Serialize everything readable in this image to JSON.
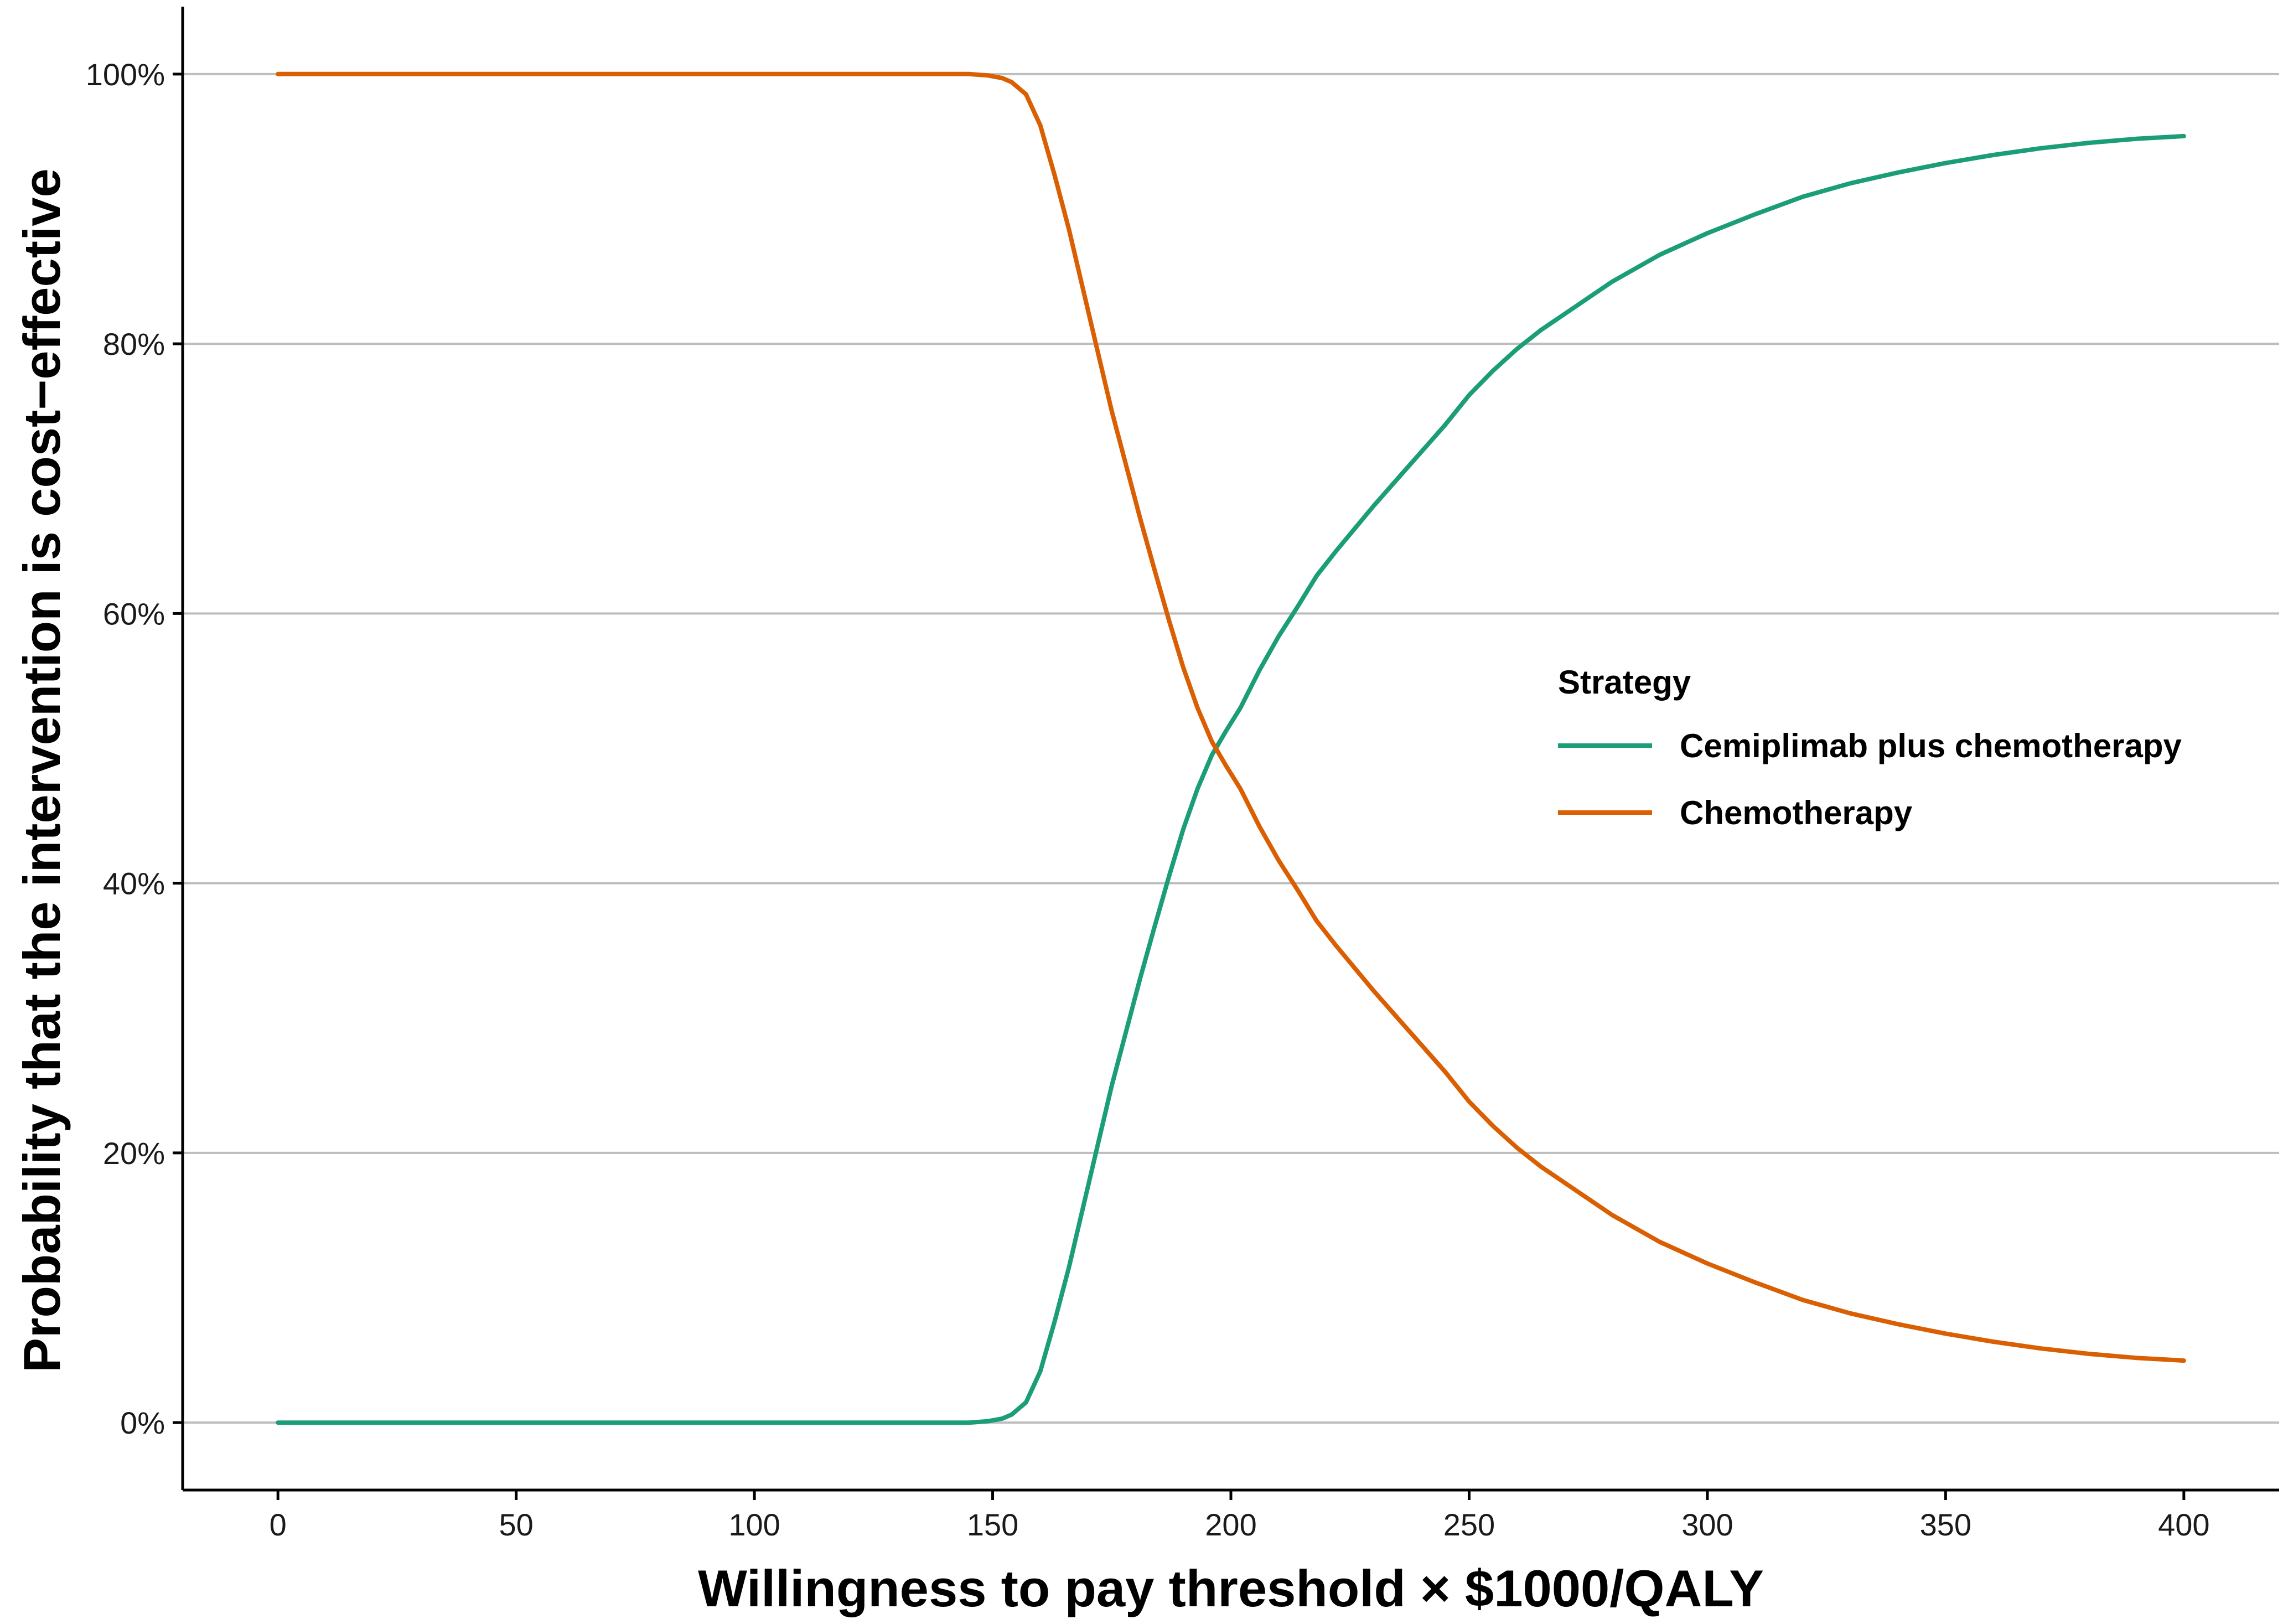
{
  "chart_data": {
    "type": "line",
    "title": "",
    "xlabel": "Willingness to pay threshold × $1000/QALY",
    "ylabel": "Probability that the intervention is cost−effective",
    "xlim": [
      -20,
      420
    ],
    "ylim": [
      -5,
      105
    ],
    "x_ticks": [
      0,
      50,
      100,
      150,
      200,
      250,
      300,
      350,
      400
    ],
    "x_tick_labels": [
      "0",
      "50",
      "100",
      "150",
      "200",
      "250",
      "300",
      "350",
      "400"
    ],
    "y_ticks": [
      0,
      20,
      40,
      60,
      80,
      100
    ],
    "y_tick_labels": [
      "0%",
      "20%",
      "40%",
      "60%",
      "80%",
      "100%"
    ],
    "grid": "horizontal major gridlines",
    "legend": {
      "title": "Strategy",
      "position": "right",
      "entries": [
        "Cemiplimab plus chemotherapy",
        "Chemotherapy"
      ]
    },
    "series": [
      {
        "name": "Cemiplimab plus chemotherapy",
        "color": "#1b9e77",
        "x": [
          0,
          50,
          100,
          145,
          149,
          152,
          154,
          157,
          160,
          163,
          166,
          169,
          172,
          175,
          178,
          181,
          184,
          187,
          190,
          193,
          196,
          199,
          202,
          206,
          210,
          214,
          218,
          222,
          226,
          230,
          235,
          240,
          245,
          250,
          255,
          260,
          265,
          270,
          280,
          290,
          300,
          310,
          320,
          330,
          340,
          350,
          360,
          370,
          380,
          390,
          400
        ],
        "y": [
          0,
          0,
          0,
          0,
          0.1,
          0.3,
          0.6,
          1.5,
          3.8,
          7.5,
          11.5,
          16.0,
          20.5,
          25.0,
          29.0,
          33.0,
          36.8,
          40.5,
          44.0,
          47.0,
          49.5,
          51.3,
          53.0,
          55.8,
          58.3,
          60.5,
          62.8,
          64.6,
          66.3,
          68.0,
          70.0,
          72.0,
          74.0,
          76.2,
          78.0,
          79.6,
          81.0,
          82.2,
          84.6,
          86.6,
          88.2,
          89.6,
          90.9,
          91.9,
          92.7,
          93.4,
          94.0,
          94.5,
          94.9,
          95.2,
          95.4
        ]
      },
      {
        "name": "Chemotherapy",
        "color": "#d95f02",
        "x": [
          0,
          50,
          100,
          145,
          149,
          152,
          154,
          157,
          160,
          163,
          166,
          169,
          172,
          175,
          178,
          181,
          184,
          187,
          190,
          193,
          196,
          199,
          202,
          206,
          210,
          214,
          218,
          222,
          226,
          230,
          235,
          240,
          245,
          250,
          255,
          260,
          265,
          270,
          280,
          290,
          300,
          310,
          320,
          330,
          340,
          350,
          360,
          370,
          380,
          390,
          400
        ],
        "y": [
          100,
          100,
          100,
          100,
          99.9,
          99.7,
          99.4,
          98.5,
          96.2,
          92.5,
          88.5,
          84.0,
          79.5,
          75.0,
          71.0,
          67.0,
          63.2,
          59.5,
          56.0,
          53.0,
          50.5,
          48.7,
          47.0,
          44.2,
          41.7,
          39.5,
          37.2,
          35.4,
          33.7,
          32.0,
          30.0,
          28.0,
          26.0,
          23.8,
          22.0,
          20.4,
          19.0,
          17.8,
          15.4,
          13.4,
          11.8,
          10.4,
          9.1,
          8.1,
          7.3,
          6.6,
          6.0,
          5.5,
          5.1,
          4.8,
          4.6
        ]
      }
    ]
  }
}
